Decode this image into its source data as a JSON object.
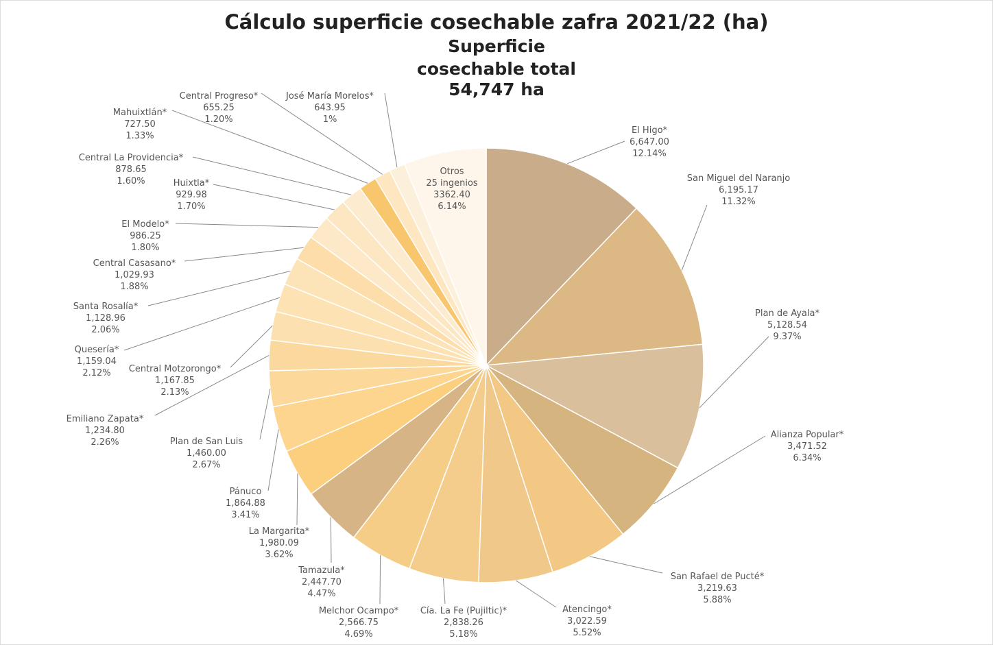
{
  "chart_data": {
    "type": "pie",
    "title": "Cálculo superficie cosechable zafra 2021/22 (ha)",
    "subtitle": "Superficie cosechable total",
    "total_label": "54,747 ha",
    "categories": [
      "El Higo*",
      "San Miguel del Naranjo",
      "Plan de Ayala*",
      "Alianza Popular*",
      "San Rafael de Pucté*",
      "Atencingo*",
      "Cía. La Fe (Pujiltic)*",
      "Melchor Ocampo*",
      "Tamazula*",
      "La Margarita*",
      "Pánuco",
      "Plan de San Luis",
      "Emiliano Zapata*",
      "Central Motzorongo*",
      "Quesería*",
      "Santa Rosalía*",
      "Central Casasano*",
      "El Modelo*",
      "Huixtla*",
      "Central La Providencia*",
      "Mahuixtlán*",
      "Central Progreso*",
      "José María Morelos*",
      "Otros 25 ingenios"
    ],
    "values": [
      6647.0,
      6195.17,
      5128.54,
      3471.52,
      3219.63,
      3022.59,
      2838.26,
      2566.75,
      2447.7,
      1980.09,
      1864.88,
      1460.0,
      1234.8,
      1167.85,
      1159.04,
      1128.96,
      1029.93,
      986.25,
      929.98,
      878.65,
      727.5,
      655.25,
      643.95,
      3362.4
    ],
    "value_labels": [
      "6,647.00",
      "6,195.17",
      "5,128.54",
      "3,471.52",
      "3,219.63",
      "3,022.59",
      "2,838.26",
      "2,566.75",
      "2,447.70",
      "1,980.09",
      "1,864.88",
      "1,460.00",
      "1,234.80",
      "1,167.85",
      "1,159.04",
      "1,128.96",
      "1,029.93",
      "986.25",
      "929.98",
      "878.65",
      "727.50",
      "655.25",
      "643.95",
      "3362.40"
    ],
    "percent_labels": [
      "12.14%",
      "11.32%",
      "9.37%",
      "6.34%",
      "5.88%",
      "5.52%",
      "5.18%",
      "4.69%",
      "4.47%",
      "3.62%",
      "3.41%",
      "2.67%",
      "2.26%",
      "2.13%",
      "2.12%",
      "2.06%",
      "1.88%",
      "1.80%",
      "1.70%",
      "1.60%",
      "1.33%",
      "1.20%",
      "1%",
      "6.14%"
    ],
    "colors": [
      "#c9ad8b",
      "#dbb884",
      "#d9bf9b",
      "#d6b47f",
      "#f2c884",
      "#f0c98a",
      "#f4cc8c",
      "#f6cd86",
      "#d7b485",
      "#fccf7f",
      "#fdd58f",
      "#fcd89a",
      "#fbd89e",
      "#fde0b0",
      "#fde2b3",
      "#fde4b8",
      "#fddeab",
      "#fde9c8",
      "#fde6c2",
      "#fdebd0",
      "#f8c66c",
      "#fde6c0",
      "#fdf0db",
      "#fef6ea"
    ]
  }
}
